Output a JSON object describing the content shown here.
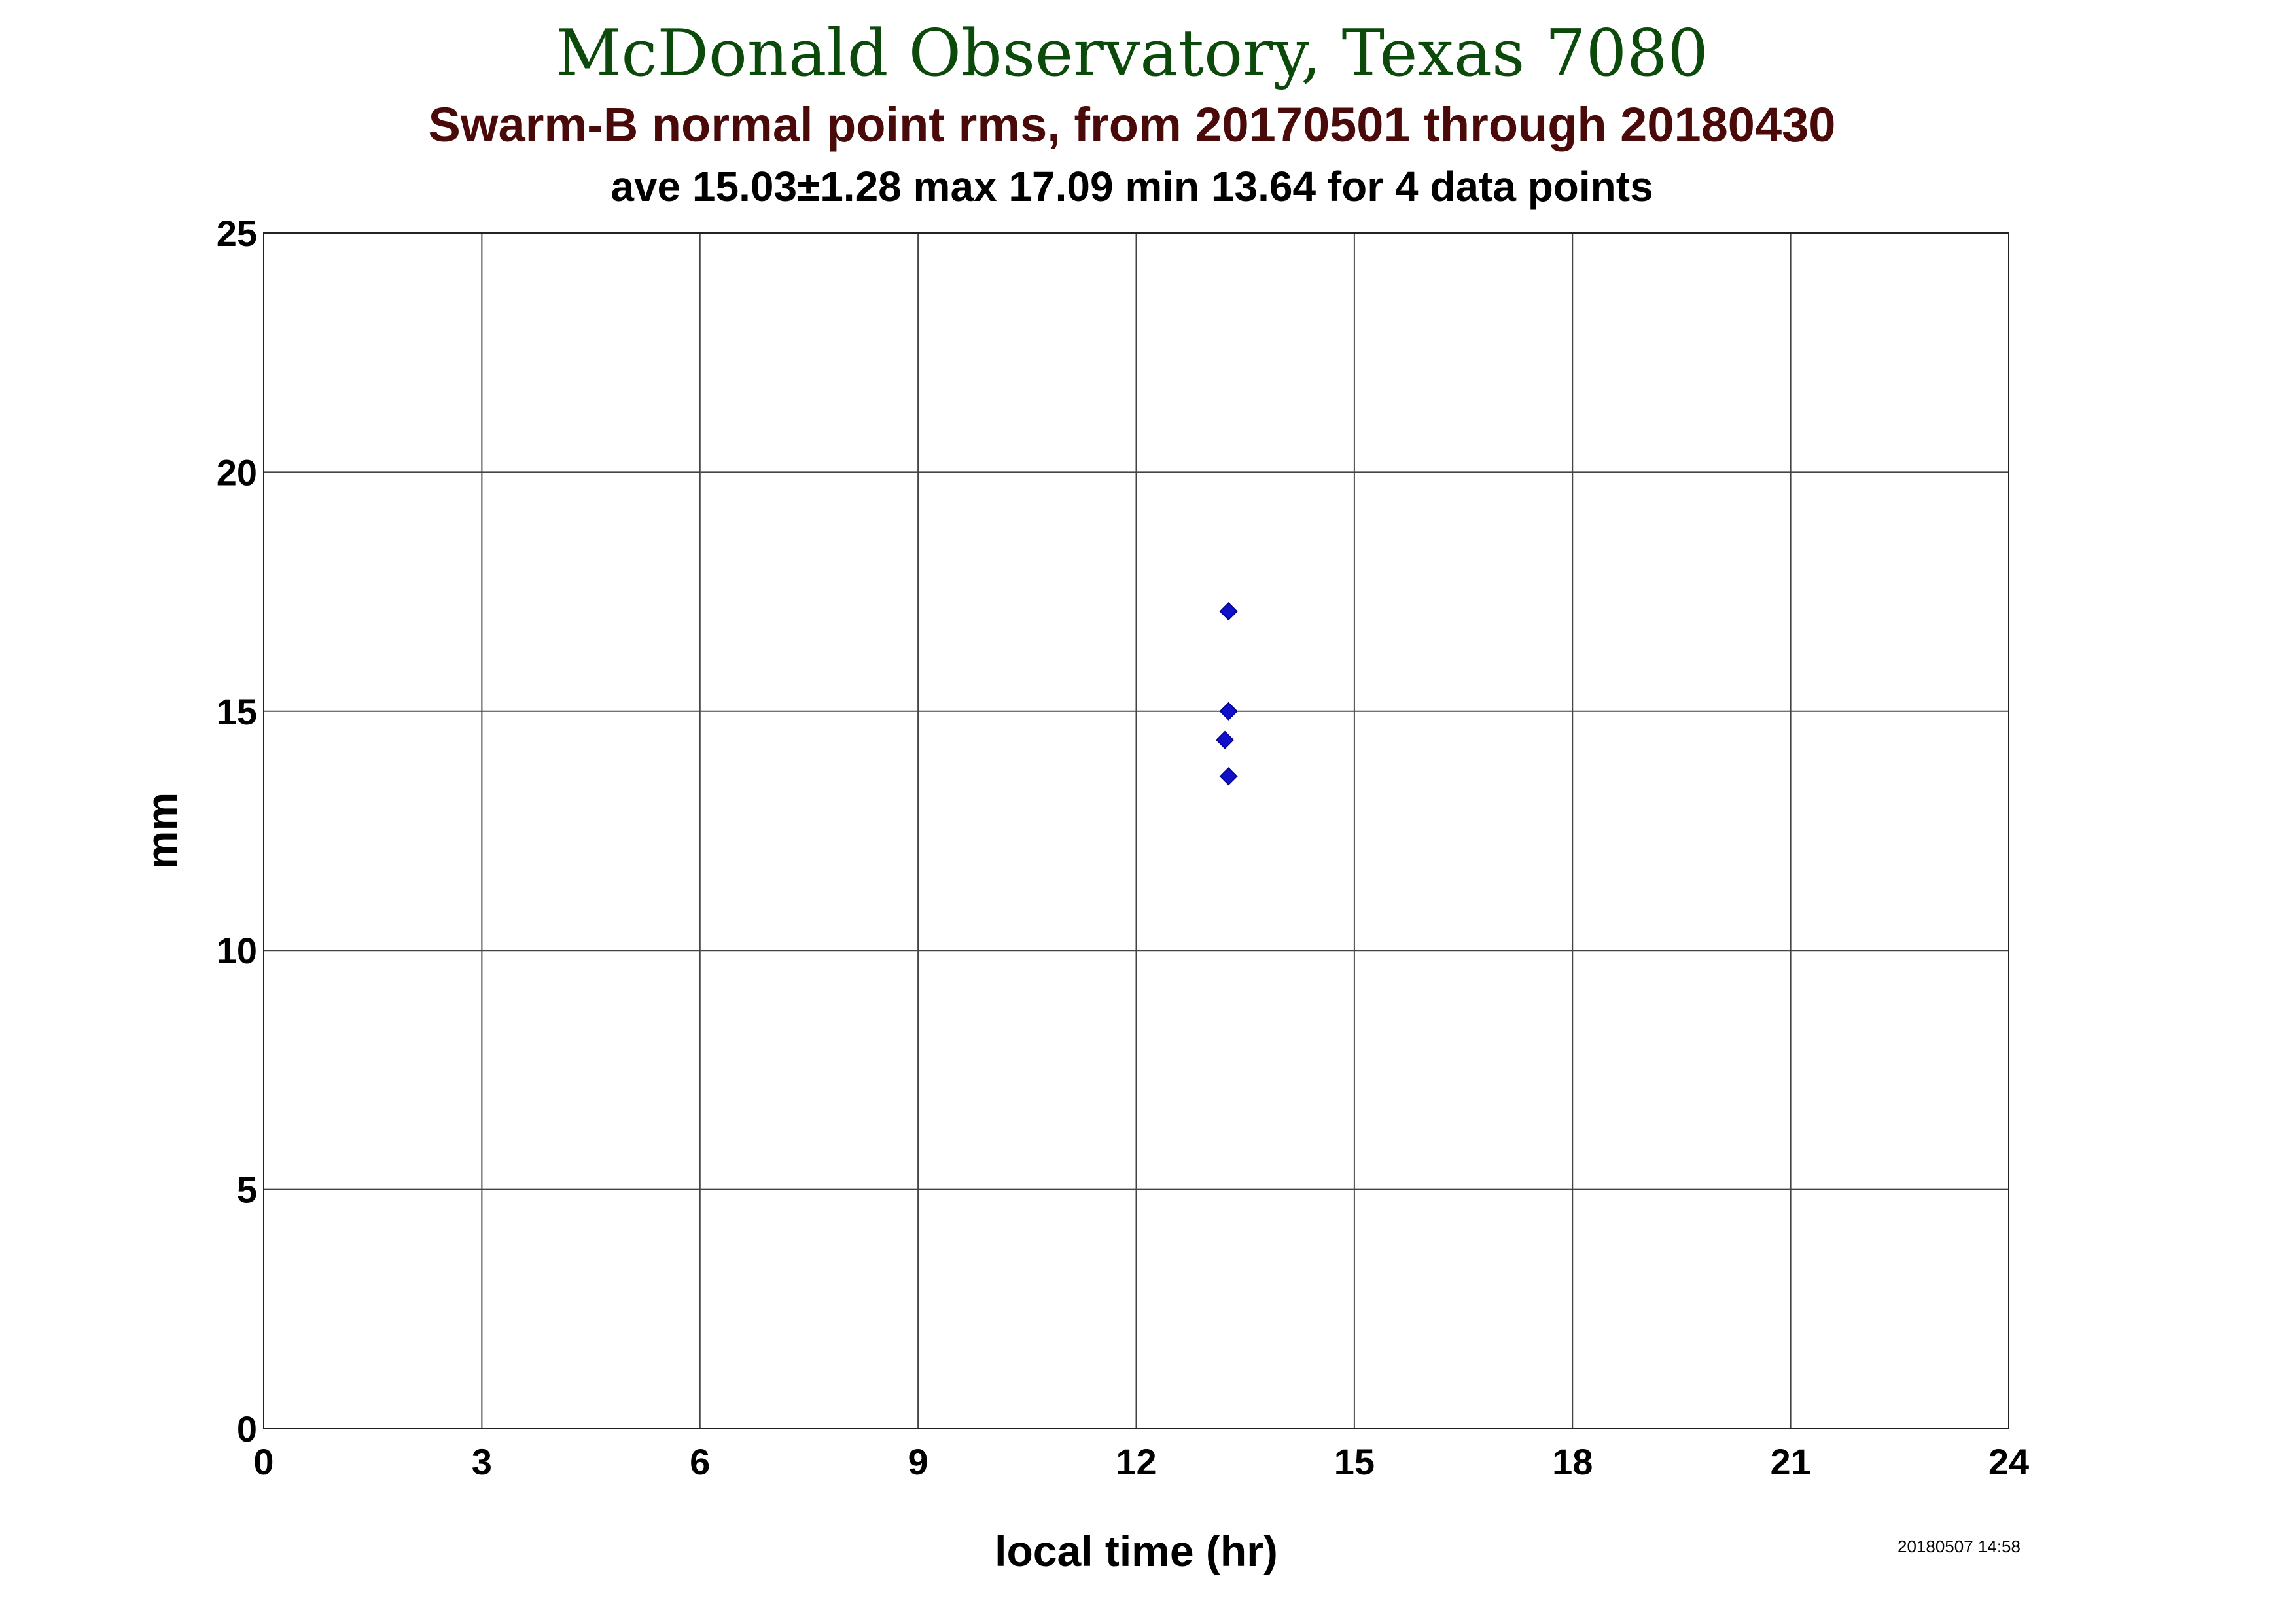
{
  "header": {
    "title": "McDonald Observatory, Texas 7080",
    "subtitle": "Swarm-B normal point rms, from 20170501 through 20180430",
    "stats": "ave 15.03±1.28 max 17.09 min 13.64 for 4 data points"
  },
  "footer": {
    "timestamp": "20180507 14:58"
  },
  "colors": {
    "title": "#0b4a0b",
    "subtitle": "#4a0a0a",
    "marker": "#1010c8",
    "grid": "#444444"
  },
  "chart_data": {
    "type": "scatter",
    "title": "McDonald Observatory, Texas 7080",
    "subtitle": "Swarm-B normal point rms, from 20170501 through 20180430",
    "xlabel": "local time (hr)",
    "ylabel": "mm",
    "xlim": [
      0,
      24
    ],
    "ylim": [
      0,
      25
    ],
    "xticks": [
      0,
      3,
      6,
      9,
      12,
      15,
      18,
      21,
      24
    ],
    "yticks": [
      0,
      5,
      10,
      15,
      20,
      25
    ],
    "grid": true,
    "marker": "diamond",
    "series": [
      {
        "points": [
          {
            "x": 13.27,
            "y": 17.09
          },
          {
            "x": 13.27,
            "y": 15.0
          },
          {
            "x": 13.22,
            "y": 14.4
          },
          {
            "x": 13.27,
            "y": 13.64
          }
        ]
      }
    ]
  }
}
